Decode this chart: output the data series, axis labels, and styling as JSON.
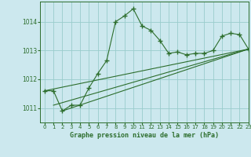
{
  "title": "Graphe pression niveau de la mer (hPa)",
  "background_color": "#cce8ee",
  "grid_color": "#99cccc",
  "line_color": "#2d6e2d",
  "xlim": [
    -0.5,
    23
  ],
  "ylim": [
    1010.5,
    1014.7
  ],
  "yticks": [
    1011,
    1012,
    1013,
    1014
  ],
  "xticks": [
    0,
    1,
    2,
    3,
    4,
    5,
    6,
    7,
    8,
    9,
    10,
    11,
    12,
    13,
    14,
    15,
    16,
    17,
    18,
    19,
    20,
    21,
    22,
    23
  ],
  "series1_x": [
    0,
    1,
    2,
    3,
    4,
    5,
    6,
    7,
    8,
    9,
    10,
    11,
    12,
    13,
    14,
    15,
    16,
    17,
    18,
    19,
    20,
    21,
    22,
    23
  ],
  "series1_y": [
    1011.6,
    1011.6,
    1010.9,
    1011.1,
    1011.1,
    1011.7,
    1012.2,
    1012.65,
    1014.0,
    1014.2,
    1014.45,
    1013.85,
    1013.7,
    1013.35,
    1012.9,
    1012.95,
    1012.85,
    1012.9,
    1012.9,
    1013.0,
    1013.5,
    1013.6,
    1013.55,
    1013.05
  ],
  "series2_x": [
    0,
    23
  ],
  "series2_y": [
    1011.6,
    1013.05
  ],
  "series3_x": [
    1,
    23
  ],
  "series3_y": [
    1011.1,
    1013.05
  ],
  "series4_x": [
    2,
    23
  ],
  "series4_y": [
    1010.9,
    1013.05
  ]
}
